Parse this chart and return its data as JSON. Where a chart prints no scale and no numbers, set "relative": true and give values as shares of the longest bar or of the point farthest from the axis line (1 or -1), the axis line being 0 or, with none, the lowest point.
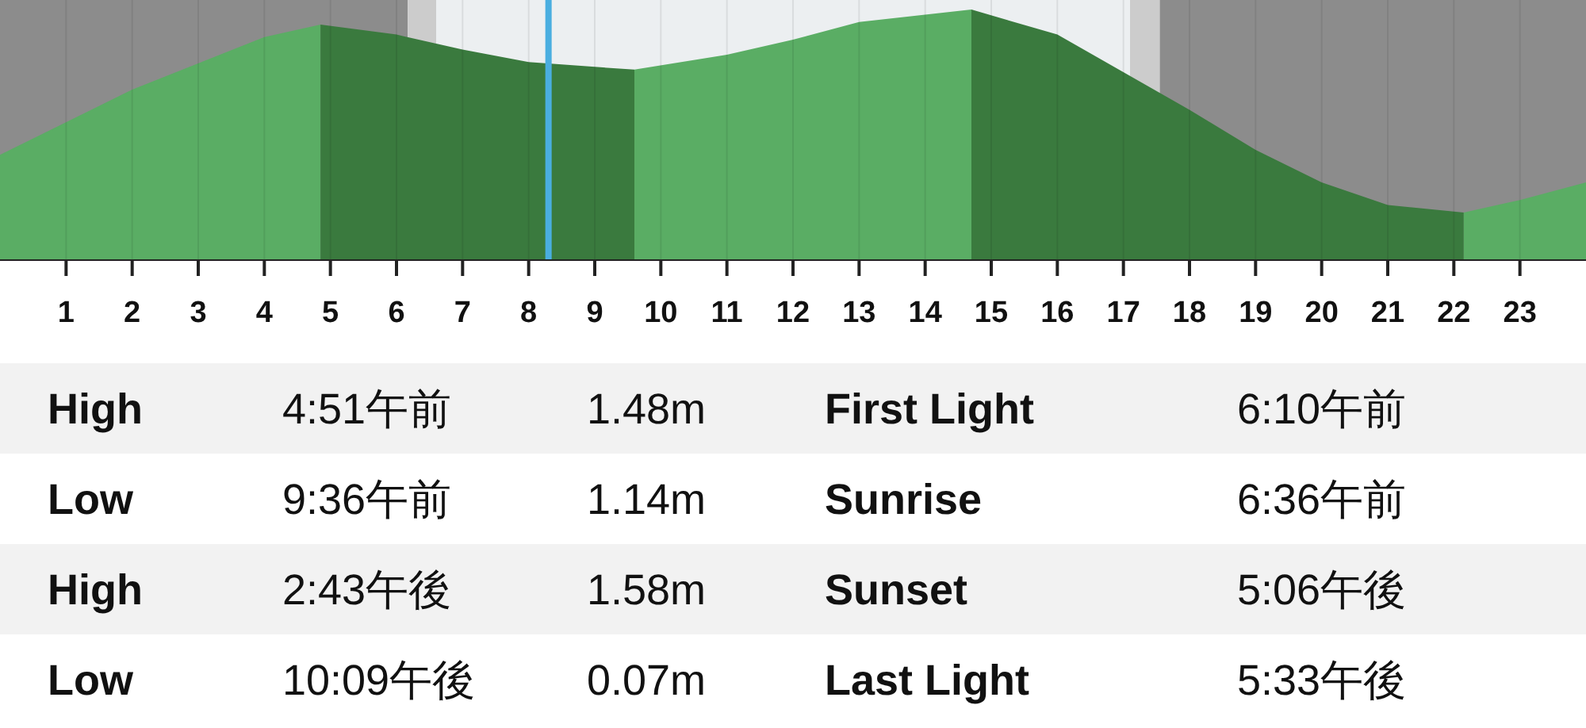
{
  "chart_data": [
    {
      "type": "area",
      "relative": true,
      "xlim": [
        0,
        24
      ],
      "xticks": [
        1,
        2,
        3,
        4,
        5,
        6,
        7,
        8,
        9,
        10,
        11,
        12,
        13,
        14,
        15,
        16,
        17,
        18,
        19,
        20,
        21,
        22,
        23
      ],
      "grid": "x",
      "series": [
        {
          "color": "#5aad64",
          "x": [
            0,
            2,
            4,
            4.85
          ],
          "values": [
            0.42,
            0.68,
            0.89,
            0.94
          ]
        },
        {
          "color": "#3a7a3e",
          "x": [
            4.85,
            6,
            7,
            8,
            9.6
          ],
          "values": [
            0.94,
            0.9,
            0.84,
            0.79,
            0.76
          ]
        },
        {
          "color": "#5aad64",
          "x": [
            9.6,
            11,
            12,
            13,
            14.7
          ],
          "values": [
            0.76,
            0.82,
            0.88,
            0.95,
            1.0
          ]
        },
        {
          "color": "#3a7a3e",
          "x": [
            14.7,
            16,
            17,
            18,
            19,
            20,
            21,
            22.15
          ],
          "values": [
            1.0,
            0.9,
            0.75,
            0.6,
            0.44,
            0.31,
            0.22,
            0.19
          ]
        },
        {
          "color": "#5aad64",
          "x": [
            22.15,
            23,
            24
          ],
          "values": [
            0.19,
            0.24,
            0.31
          ]
        }
      ],
      "bands": [
        {
          "axis": "x",
          "from": 0,
          "to": 6.17,
          "color": "#8c8c8c"
        },
        {
          "axis": "x",
          "from": 6.17,
          "to": 6.6,
          "color": "#cccccc"
        },
        {
          "axis": "x",
          "from": 6.6,
          "to": 17.1,
          "color": "#eceff1"
        },
        {
          "axis": "x",
          "from": 17.1,
          "to": 17.55,
          "color": "#cccccc"
        },
        {
          "axis": "x",
          "from": 17.55,
          "to": 24,
          "color": "#8c8c8c"
        }
      ],
      "ref_lines": [
        {
          "axis": "x",
          "value": 8.3,
          "color": "#4aaee0"
        }
      ]
    },
    {
      "type": "other",
      "annotations": [
        "High",
        "4:51午前",
        "1.48m",
        "First Light",
        "6:10午前",
        "Low",
        "9:36午前",
        "1.14m",
        "Sunrise",
        "6:36午前",
        "High",
        "2:43午後",
        "1.58m",
        "Sunset",
        "5:06午後",
        "Low",
        "10:09午後",
        "0.07m",
        "Last Light",
        "5:33午後"
      ]
    }
  ]
}
